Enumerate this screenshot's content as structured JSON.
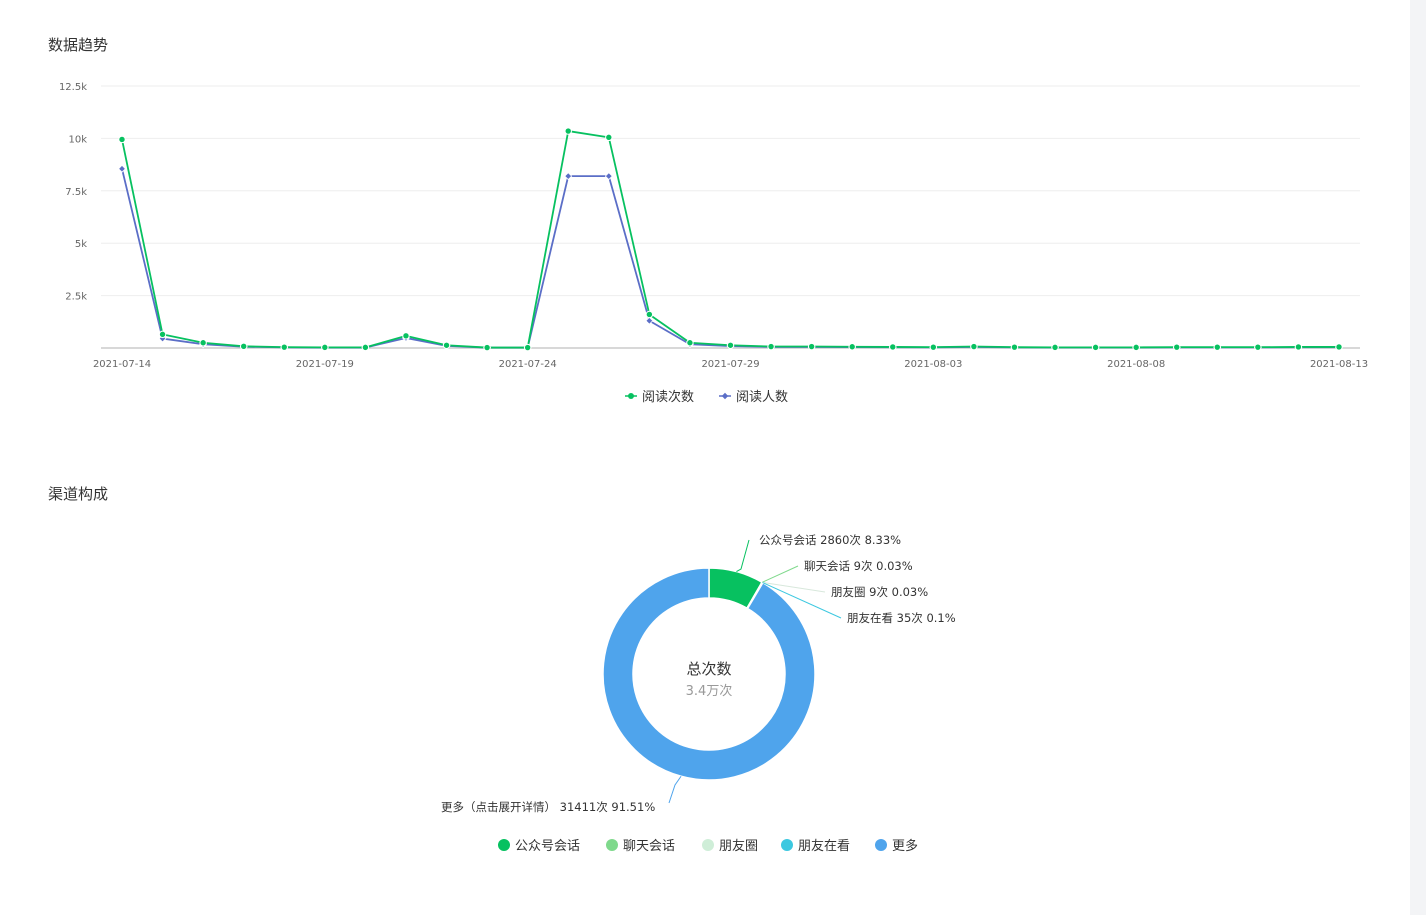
{
  "sections": {
    "trend_title": "数据趋势",
    "channel_title": "渠道构成"
  },
  "colors": {
    "green": "#07c160",
    "purple": "#5b6ec7",
    "light_green": "#7fd98c",
    "pale_green": "#cfeed8",
    "cyan": "#3cc8e0",
    "blue": "#4fa4ec",
    "grid": "#eeeeee",
    "axis": "#cccccc"
  },
  "chart_data": [
    {
      "type": "line",
      "title": "数据趋势",
      "x": [
        "2021-07-14",
        "2021-07-15",
        "2021-07-16",
        "2021-07-17",
        "2021-07-18",
        "2021-07-19",
        "2021-07-20",
        "2021-07-21",
        "2021-07-22",
        "2021-07-23",
        "2021-07-24",
        "2021-07-25",
        "2021-07-26",
        "2021-07-27",
        "2021-07-28",
        "2021-07-29",
        "2021-07-30",
        "2021-07-31",
        "2021-08-01",
        "2021-08-02",
        "2021-08-03",
        "2021-08-04",
        "2021-08-05",
        "2021-08-06",
        "2021-08-07",
        "2021-08-08",
        "2021-08-09",
        "2021-08-10",
        "2021-08-11",
        "2021-08-12",
        "2021-08-13"
      ],
      "x_tick_labels": [
        "2021-07-14",
        "2021-07-19",
        "2021-07-24",
        "2021-07-29",
        "2021-08-03",
        "2021-08-08",
        "2021-08-13"
      ],
      "y_ticks": [
        "2.5k",
        "5k",
        "7.5k",
        "10k",
        "12.5k"
      ],
      "y_tick_values": [
        2500,
        5000,
        7500,
        10000,
        12500
      ],
      "ylim": [
        0,
        12500
      ],
      "grid": true,
      "legend_position": "bottom-center",
      "series": [
        {
          "name": "阅读次数",
          "color": "#07c160",
          "marker": "circle",
          "values": [
            9950,
            650,
            250,
            80,
            40,
            30,
            30,
            580,
            130,
            20,
            20,
            10350,
            10050,
            1600,
            250,
            130,
            70,
            70,
            60,
            50,
            40,
            70,
            40,
            30,
            30,
            30,
            40,
            40,
            40,
            50,
            50
          ]
        },
        {
          "name": "阅读人数",
          "color": "#5b6ec7",
          "marker": "diamond",
          "values": [
            8550,
            450,
            180,
            60,
            30,
            20,
            20,
            480,
            100,
            15,
            15,
            8200,
            8200,
            1300,
            180,
            90,
            50,
            50,
            40,
            35,
            30,
            50,
            30,
            25,
            25,
            25,
            30,
            30,
            30,
            35,
            35
          ]
        }
      ]
    },
    {
      "type": "pie",
      "title": "渠道构成",
      "center_title": "总次数",
      "center_value": "3.4万次",
      "slices": [
        {
          "name": "公众号会话",
          "value": 2860,
          "percent": 8.33,
          "label": "公众号会话 2860次 8.33%",
          "color": "#07c160"
        },
        {
          "name": "聊天会话",
          "value": 9,
          "percent": 0.03,
          "label": "聊天会话 9次 0.03%",
          "color": "#7fd98c"
        },
        {
          "name": "朋友圈",
          "value": 9,
          "percent": 0.03,
          "label": "朋友圈 9次 0.03%",
          "color": "#cfeed8"
        },
        {
          "name": "朋友在看",
          "value": 35,
          "percent": 0.1,
          "label": "朋友在看 35次 0.1%",
          "color": "#3cc8e0"
        },
        {
          "name": "更多",
          "value": 31411,
          "percent": 91.51,
          "label": "更多（点击展开详情） 31411次 91.51%",
          "color": "#4fa4ec"
        }
      ],
      "legend_position": "bottom-center"
    }
  ]
}
